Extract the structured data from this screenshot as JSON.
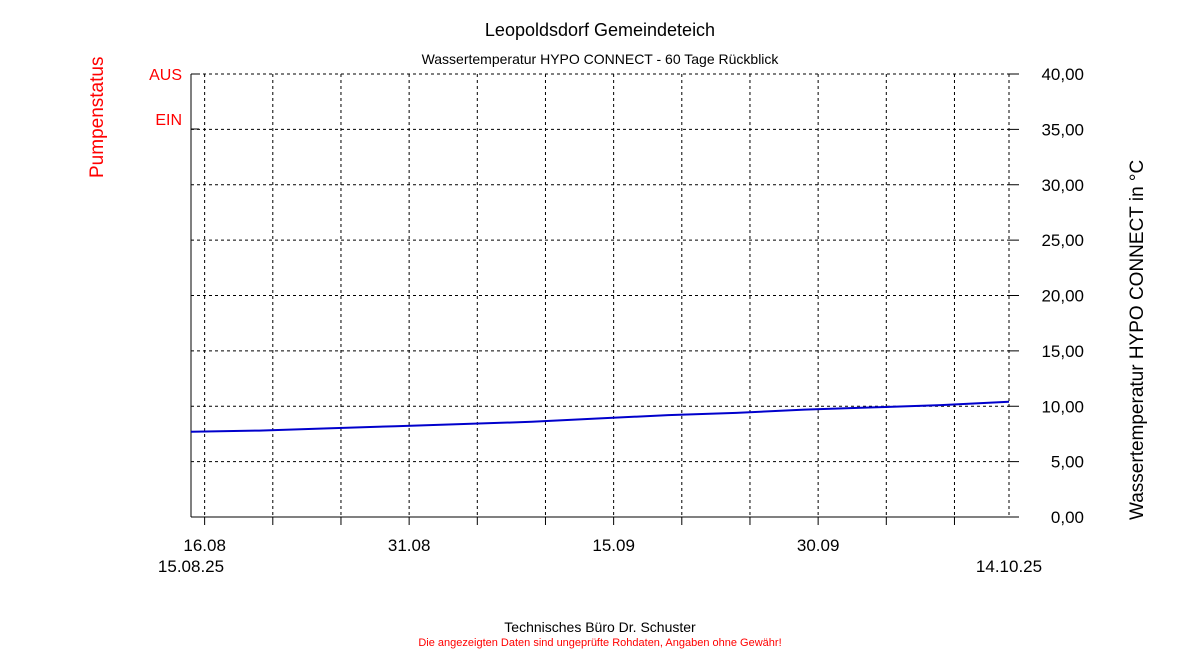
{
  "colors": {
    "pump": "#ff0000",
    "series": "#0000cc",
    "grid": "#000000",
    "disclaimer": "#ff0000"
  },
  "chart_data": {
    "type": "line",
    "title": "Leopoldsdorf Gemeindeteich",
    "subtitle": "Wassertemperatur HYPO CONNECT - 60 Tage Rückblick",
    "ylabel": "Wassertemperatur HYPO CONNECT in °C",
    "ylim": [
      0,
      40
    ],
    "yticks": [
      "0,00",
      "5,00",
      "10,00",
      "15,00",
      "20,00",
      "25,00",
      "30,00",
      "35,00",
      "40,00"
    ],
    "xlim": [
      "2025-08-15",
      "2025-10-14"
    ],
    "xtick_labels": [
      {
        "date": "2025-08-16",
        "label": "16.08"
      },
      {
        "date": "2025-08-31",
        "label": "31.08"
      },
      {
        "date": "2025-09-15",
        "label": "15.09"
      },
      {
        "date": "2025-09-30",
        "label": "30.09"
      }
    ],
    "x_start_label": "15.08.25",
    "x_end_label": "14.10.25",
    "grid": true,
    "pump_axis": {
      "label": "Pumpenstatus",
      "states": [
        "AUS",
        "EIN"
      ]
    },
    "series": [
      {
        "x": [
          "2025-08-15",
          "2025-08-20",
          "2025-08-25",
          "2025-08-30",
          "2025-09-04",
          "2025-09-09",
          "2025-09-14",
          "2025-09-19",
          "2025-09-24",
          "2025-09-29",
          "2025-10-04",
          "2025-10-09",
          "2025-10-14"
        ],
        "values": [
          7.7,
          7.8,
          8.0,
          8.2,
          8.4,
          8.6,
          8.9,
          9.2,
          9.4,
          9.7,
          9.9,
          10.1,
          10.4
        ]
      }
    ]
  },
  "footer": {
    "credit": "Technisches Büro Dr. Schuster",
    "disclaimer": "Die angezeigten Daten sind ungeprüfte Rohdaten, Angaben ohne Gewähr!"
  }
}
